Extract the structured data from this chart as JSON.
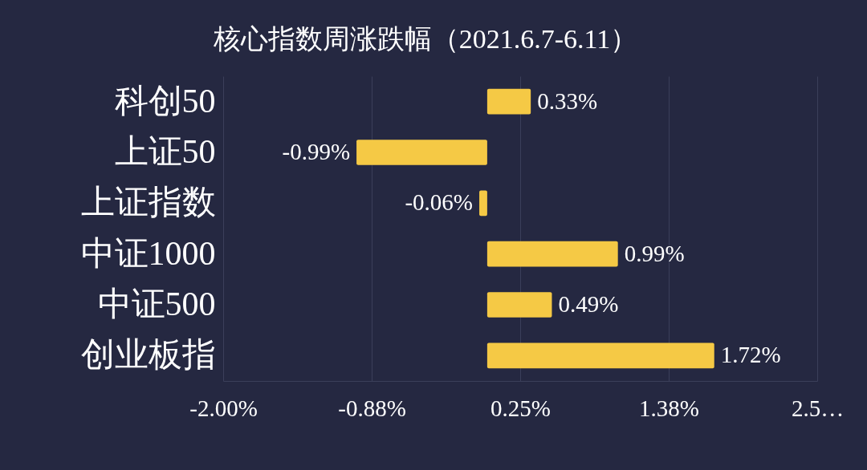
{
  "chart_data": {
    "type": "bar",
    "orientation": "horizontal",
    "title": "核心指数周涨跌幅（2021.6.7-6.11）",
    "categories": [
      "科创50",
      "上证50",
      "上证指数",
      "中证1000",
      "中证500",
      "创业板指"
    ],
    "values": [
      0.33,
      -0.99,
      -0.06,
      0.99,
      0.49,
      1.72
    ],
    "value_labels": [
      "0.33%",
      "-0.99%",
      "-0.06%",
      "0.99%",
      "0.49%",
      "1.72%"
    ],
    "color": "#f5c945",
    "xlim": [
      -2,
      2.5
    ],
    "xticks": [
      {
        "value": -2,
        "label": "-2.00%"
      },
      {
        "value": -0.875,
        "label": "-0.88%"
      },
      {
        "value": 0.25,
        "label": "0.25%"
      },
      {
        "value": 1.375,
        "label": "1.38%"
      },
      {
        "value": 2.5,
        "label": "2.5…"
      }
    ],
    "grid": "x"
  }
}
